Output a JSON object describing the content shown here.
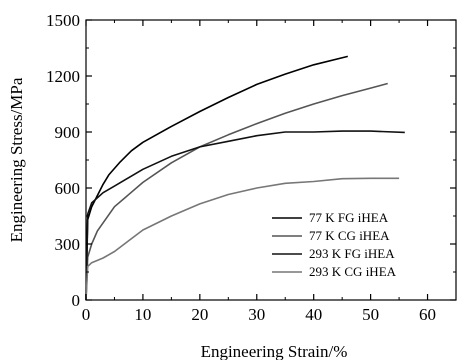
{
  "chart_data": {
    "type": "line",
    "title": "",
    "xlabel": "Engineering Strain/%",
    "ylabel": "Engineering Stress/MPa",
    "xlim": [
      0,
      65
    ],
    "ylim": [
      0,
      1500
    ],
    "xticks": [
      "0",
      "10",
      "20",
      "30",
      "40",
      "50",
      "60"
    ],
    "yticks": [
      "0",
      "300",
      "600",
      "900",
      "1200",
      "1500"
    ],
    "legend_position": "bottom-right",
    "grid": false,
    "series": [
      {
        "name": "77 K FG iHEA",
        "color": "#000000",
        "points": [
          [
            0,
            0
          ],
          [
            0.3,
            430
          ],
          [
            1,
            500
          ],
          [
            2,
            560
          ],
          [
            3,
            620
          ],
          [
            4,
            670
          ],
          [
            6,
            740
          ],
          [
            8,
            800
          ],
          [
            10,
            845
          ],
          [
            15,
            930
          ],
          [
            20,
            1010
          ],
          [
            25,
            1085
          ],
          [
            30,
            1155
          ],
          [
            35,
            1210
          ],
          [
            40,
            1260
          ],
          [
            46,
            1305
          ]
        ]
      },
      {
        "name": "77 K CG iHEA",
        "color": "#555555",
        "points": [
          [
            0,
            0
          ],
          [
            0.3,
            230
          ],
          [
            1,
            300
          ],
          [
            2,
            370
          ],
          [
            5,
            500
          ],
          [
            10,
            630
          ],
          [
            15,
            735
          ],
          [
            20,
            820
          ],
          [
            25,
            885
          ],
          [
            30,
            945
          ],
          [
            35,
            1000
          ],
          [
            40,
            1050
          ],
          [
            45,
            1095
          ],
          [
            50,
            1135
          ],
          [
            53,
            1160
          ]
        ]
      },
      {
        "name": "293 K FG iHEA",
        "color": "#111111",
        "points": [
          [
            0,
            0
          ],
          [
            0.3,
            460
          ],
          [
            1,
            520
          ],
          [
            3,
            575
          ],
          [
            5,
            610
          ],
          [
            10,
            700
          ],
          [
            15,
            770
          ],
          [
            20,
            820
          ],
          [
            25,
            850
          ],
          [
            30,
            880
          ],
          [
            35,
            900
          ],
          [
            40,
            900
          ],
          [
            45,
            905
          ],
          [
            50,
            905
          ],
          [
            56,
            898
          ]
        ]
      },
      {
        "name": "293 K CG iHEA",
        "color": "#777777",
        "points": [
          [
            0,
            0
          ],
          [
            0.3,
            180
          ],
          [
            1,
            200
          ],
          [
            3,
            225
          ],
          [
            5,
            260
          ],
          [
            10,
            375
          ],
          [
            15,
            450
          ],
          [
            20,
            515
          ],
          [
            25,
            565
          ],
          [
            30,
            600
          ],
          [
            35,
            625
          ],
          [
            40,
            635
          ],
          [
            45,
            650
          ],
          [
            50,
            652
          ],
          [
            55,
            652
          ]
        ]
      }
    ]
  }
}
